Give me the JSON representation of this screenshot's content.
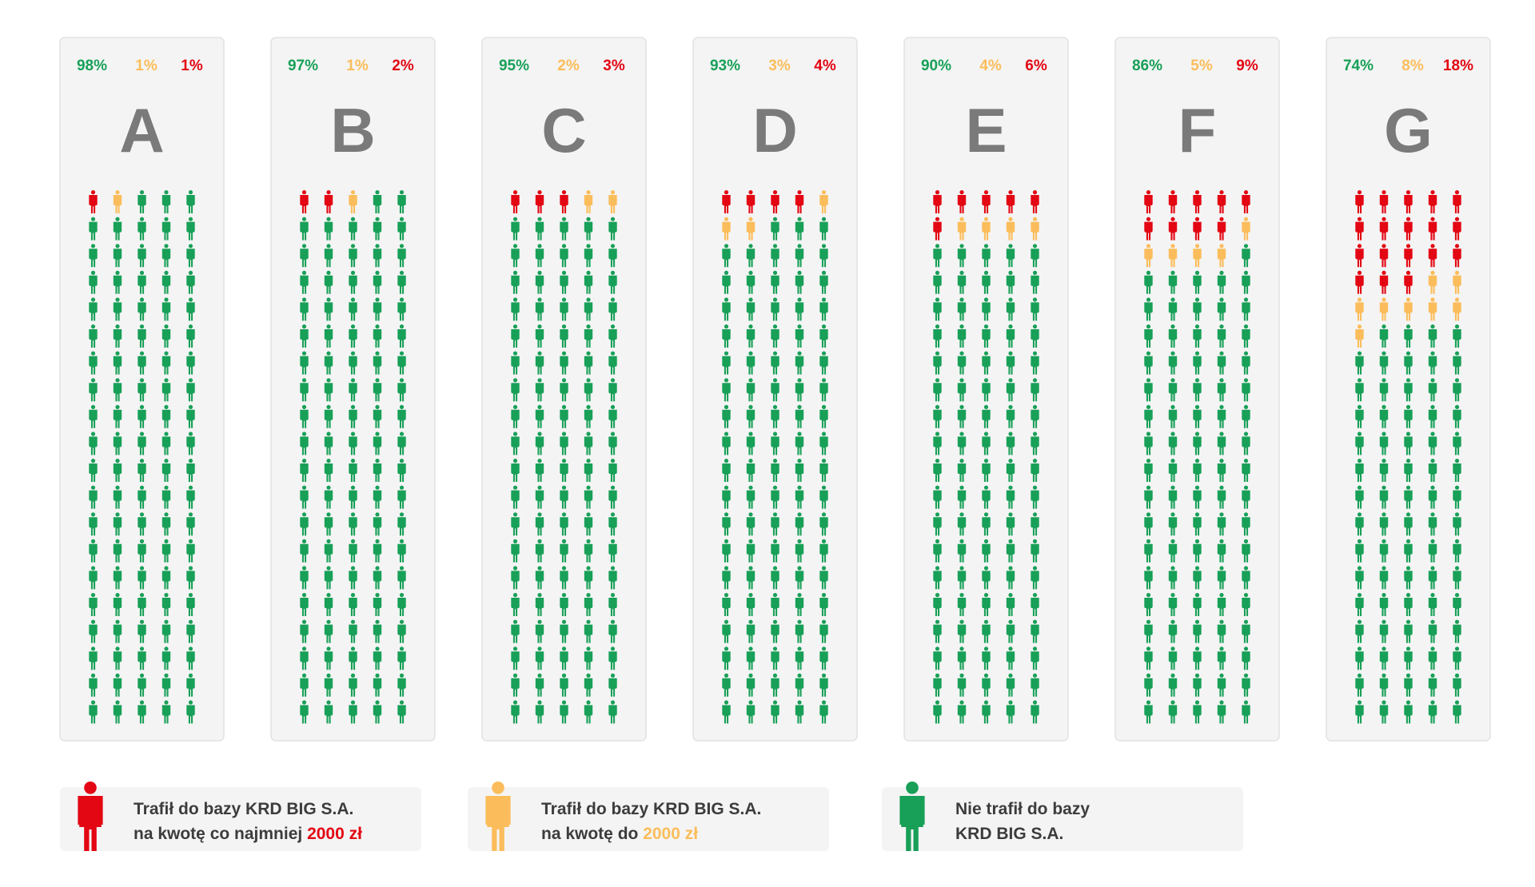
{
  "colors": {
    "red": "#e30613",
    "yellow": "#fbbd5b",
    "green": "#18a058",
    "panel": "#f4f4f4",
    "panel_border": "#e2e2e2",
    "letter": "#7a7a7a",
    "text": "#3c3c3c"
  },
  "chart_data": {
    "type": "pictogram",
    "people_per_column": 100,
    "series_order": [
      "green",
      "yellow",
      "red"
    ],
    "categories": [
      {
        "letter": "A",
        "green_pct": "98%",
        "yellow_pct": "1%",
        "red_pct": "1%",
        "green": 98,
        "yellow": 1,
        "red": 1
      },
      {
        "letter": "B",
        "green_pct": "97%",
        "yellow_pct": "1%",
        "red_pct": "2%",
        "green": 97,
        "yellow": 1,
        "red": 2
      },
      {
        "letter": "C",
        "green_pct": "95%",
        "yellow_pct": "2%",
        "red_pct": "3%",
        "green": 95,
        "yellow": 2,
        "red": 3
      },
      {
        "letter": "D",
        "green_pct": "93%",
        "yellow_pct": "3%",
        "red_pct": "4%",
        "green": 93,
        "yellow": 3,
        "red": 4
      },
      {
        "letter": "E",
        "green_pct": "90%",
        "yellow_pct": "4%",
        "red_pct": "6%",
        "green": 90,
        "yellow": 4,
        "red": 6
      },
      {
        "letter": "F",
        "green_pct": "86%",
        "yellow_pct": "5%",
        "red_pct": "9%",
        "green": 86,
        "yellow": 5,
        "red": 9
      },
      {
        "letter": "G",
        "green_pct": "74%",
        "yellow_pct": "8%",
        "red_pct": "18%",
        "green": 74,
        "yellow": 8,
        "red": 18
      }
    ]
  },
  "legend": [
    {
      "color": "red",
      "line1": "Trafił do bazy KRD BIG S.A.",
      "line2_prefix": "na kwotę co najmniej ",
      "line2_highlight": "2000 zł"
    },
    {
      "color": "yellow",
      "line1": "Trafił do bazy KRD BIG S.A.",
      "line2_prefix": "na kwotę do ",
      "line2_highlight": "2000 zł"
    },
    {
      "color": "green",
      "line1": "Nie trafił do bazy",
      "line2_prefix": "KRD BIG S.A.",
      "line2_highlight": ""
    }
  ]
}
